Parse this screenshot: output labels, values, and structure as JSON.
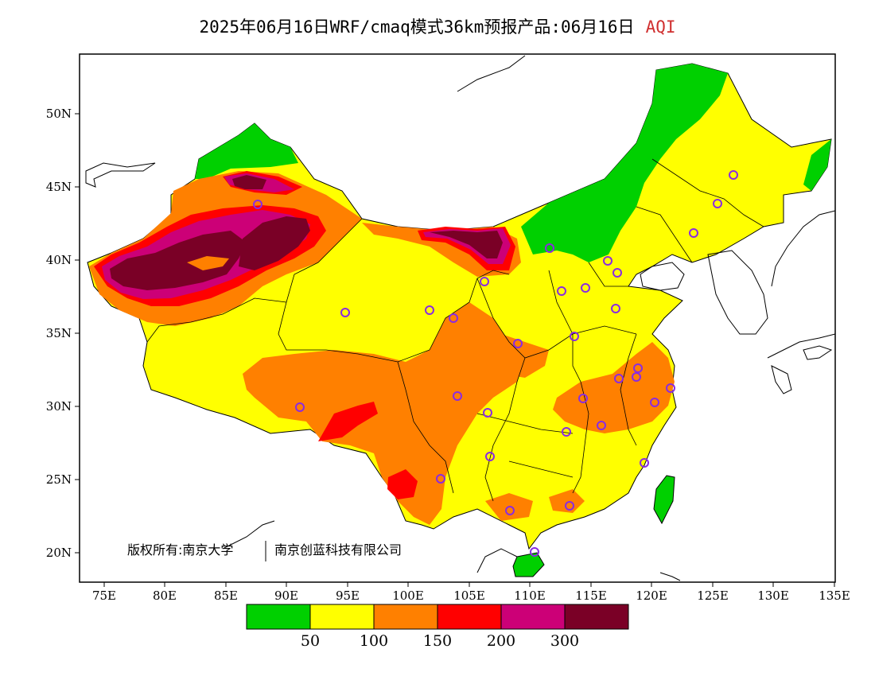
{
  "title": {
    "text": "2025年06月16日WRF/cmaq模式36km预报产品:06月16日",
    "variable": "AQI"
  },
  "axes": {
    "x_ticks": [
      "75E",
      "80E",
      "85E",
      "90E",
      "95E",
      "100E",
      "105E",
      "110E",
      "115E",
      "120E",
      "125E",
      "130E",
      "135E"
    ],
    "y_ticks": [
      "50N",
      "45N",
      "40N",
      "35N",
      "30N",
      "25N",
      "20N"
    ]
  },
  "legend": {
    "colors": [
      "#00d000",
      "#ffff00",
      "#ff8000",
      "#ff0000",
      "#cc0077",
      "#7a0026"
    ],
    "thresholds": [
      "50",
      "100",
      "150",
      "200",
      "300"
    ]
  },
  "credit": {
    "part1": "版权所有:南京大学",
    "part2": "南京创蓝科技有限公司"
  },
  "colors": {
    "good": "#00d000",
    "moderate": "#ffff00",
    "sensitive": "#ff8000",
    "unhealthy": "#ff0000",
    "very_unhealthy": "#cc0077",
    "hazardous": "#7a0026",
    "station": "#8a2be2",
    "title_variable": "#d03030"
  },
  "stations_label": "monitoring-station-markers"
}
